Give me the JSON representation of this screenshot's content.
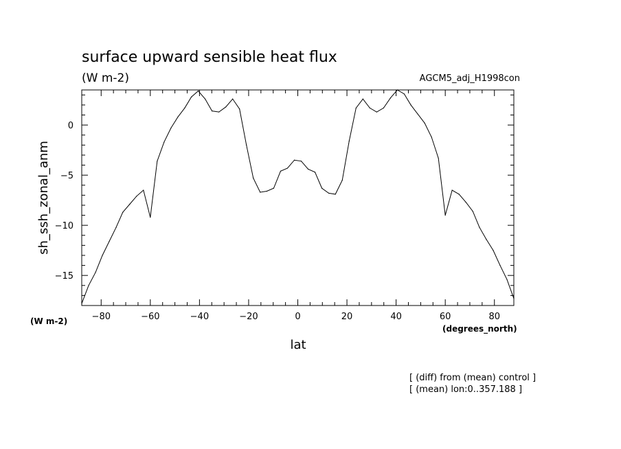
{
  "chart_data": {
    "type": "line",
    "title": "surface upward sensible heat flux",
    "subtitle": "(W m-2)",
    "experiment": "AGCM5_adj_H1998con",
    "xlabel": "lat",
    "xunits": "(degrees_north)",
    "ylabel": "sh_ssh_zonal_anm",
    "yunits": "(W m-2)",
    "notes": [
      "[ (diff) from (mean) control ]",
      "[ (mean) lon:0..357.188 ]"
    ],
    "xlim": [
      -87.9,
      87.9
    ],
    "ylim": [
      -18,
      3.5
    ],
    "xticks": [
      -80,
      -60,
      -40,
      -20,
      0,
      20,
      40,
      60,
      80
    ],
    "yticks": [
      -15,
      -10,
      -5,
      0
    ],
    "grid": false,
    "x": [
      -87.9,
      -85.1,
      -82.3,
      -79.5,
      -76.7,
      -73.9,
      -71.2,
      -68.4,
      -65.6,
      -62.8,
      -60.0,
      -57.2,
      -54.4,
      -51.6,
      -48.8,
      -46.0,
      -43.3,
      -40.5,
      -37.7,
      -34.9,
      -32.1,
      -29.3,
      -26.5,
      -23.7,
      -20.9,
      -18.1,
      -15.3,
      -12.6,
      -9.8,
      -7.0,
      -4.2,
      -1.4,
      1.4,
      4.2,
      7.0,
      9.8,
      12.6,
      15.3,
      18.1,
      20.9,
      23.7,
      26.5,
      29.3,
      32.1,
      34.9,
      37.7,
      40.5,
      43.3,
      46.0,
      48.8,
      51.6,
      54.4,
      57.2,
      60.0,
      62.8,
      65.6,
      68.4,
      71.2,
      73.9,
      76.7,
      79.5,
      82.3,
      85.1,
      87.9
    ],
    "series": [
      {
        "values": [
          -17.8,
          -16.0,
          -14.7,
          -13.0,
          -11.6,
          -10.2,
          -8.7,
          -7.9,
          -7.1,
          -6.5,
          -9.2,
          -3.6,
          -1.7,
          -0.3,
          0.8,
          1.7,
          2.8,
          3.4,
          2.6,
          1.4,
          1.3,
          1.8,
          2.6,
          1.6,
          -2.0,
          -5.3,
          -6.7,
          -6.6,
          -6.3,
          -4.6,
          -4.3,
          -3.5,
          -3.6,
          -4.4,
          -4.7,
          -6.3,
          -6.8,
          -6.9,
          -5.5,
          -1.6,
          1.7,
          2.6,
          1.7,
          1.3,
          1.7,
          2.7,
          3.5,
          3.1,
          2.0,
          1.1,
          0.2,
          -1.2,
          -3.3,
          -9.0,
          -6.5,
          -6.9,
          -7.7,
          -8.6,
          -10.2,
          -11.4,
          -12.5,
          -14.0,
          -15.4,
          -17.3
        ]
      }
    ]
  }
}
